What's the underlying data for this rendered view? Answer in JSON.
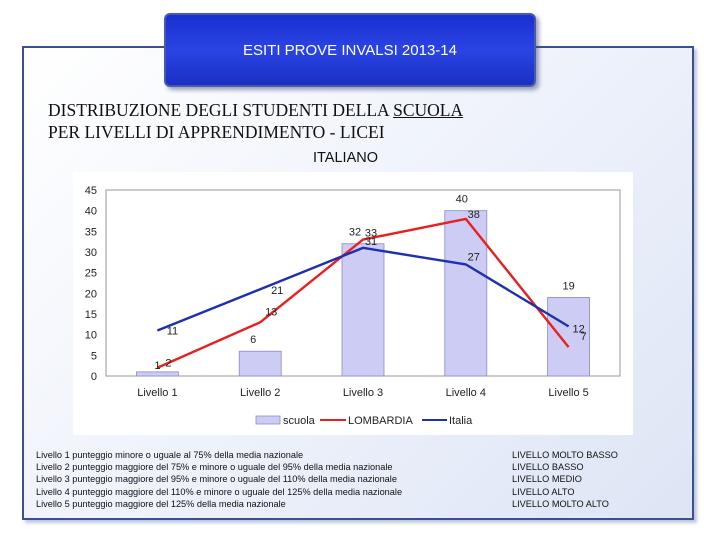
{
  "header": {
    "title": "ESITI PROVE INVALSI 2013-14"
  },
  "heading": {
    "line1_prefix": "DISTRIBUZIONE DEGLI STUDENTI DELLA ",
    "line1_underlined": "SCUOLA",
    "line2": "PER LIVELLI DI APPRENDIMENTO - LICEI"
  },
  "subtitle": "ITALIANO",
  "colors": {
    "scuola": "#ccccf5",
    "lombardia": "#e82020",
    "italia": "#1e2fb0"
  },
  "chart_data": {
    "type": "bar",
    "categories": [
      "Livello 1",
      "Livello 2",
      "Livello 3",
      "Livello 4",
      "Livello 5"
    ],
    "y_ticks": [
      "0",
      "5",
      "10",
      "15",
      "20",
      "25",
      "30",
      "35",
      "40",
      "45"
    ],
    "ylim": [
      0,
      45
    ],
    "grid": false,
    "legend_position": "bottom",
    "series": [
      {
        "name": "scuola",
        "type": "bar",
        "values": [
          1,
          6,
          32,
          40,
          19
        ],
        "labels": [
          "1",
          "6",
          "32",
          "40",
          "19"
        ]
      },
      {
        "name": "LOMBARDIA",
        "type": "line",
        "values": [
          2,
          13,
          33,
          38,
          7
        ],
        "labels": [
          "2",
          "13",
          "33",
          "38",
          "7"
        ]
      },
      {
        "name": "Italia",
        "type": "line",
        "values": [
          11,
          21,
          31,
          27,
          12
        ],
        "labels": [
          "11",
          "21",
          "31",
          "27",
          "12"
        ]
      }
    ]
  },
  "legend_notes": [
    {
      "description": "Livello 1 punteggio minore o uguale al 75% della media nazionale",
      "level": "LIVELLO MOLTO BASSO"
    },
    {
      "description": "Livello 2 punteggio maggiore del 75% e minore o uguale del 95% della media nazionale",
      "level": "LIVELLO BASSO"
    },
    {
      "description": "Livello 3 punteggio maggiore del 95% e minore o uguale del 110% della media nazionale",
      "level": "LIVELLO MEDIO"
    },
    {
      "description": "Livello 4 punteggio maggiore del 110% e minore o uguale del 125% della media nazionale",
      "level": "LIVELLO ALTO"
    },
    {
      "description": "Livello 5 punteggio maggiore del 125% della media nazionale",
      "level": "LIVELLO MOLTO ALTO"
    }
  ]
}
